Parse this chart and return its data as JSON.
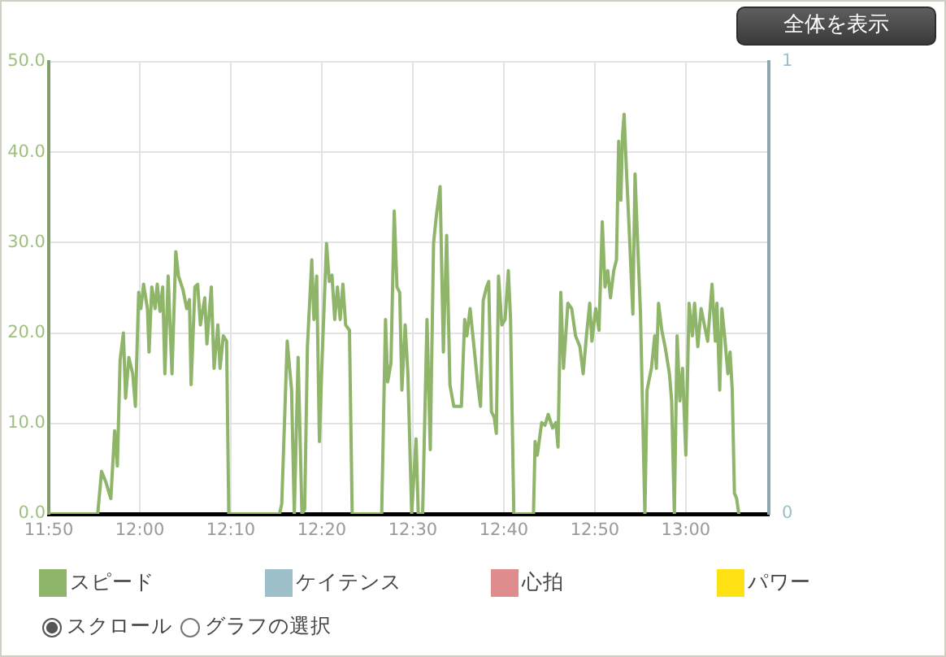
{
  "chart_data": {
    "type": "line",
    "xlim": [
      11.833333,
      13.152
    ],
    "xticks": [
      {
        "value": 11.833333,
        "label": "11:50"
      },
      {
        "value": 12,
        "label": "12:00"
      },
      {
        "value": 12.166667,
        "label": "12:10"
      },
      {
        "value": 12.333333,
        "label": "12:20"
      },
      {
        "value": 12.5,
        "label": "12:30"
      },
      {
        "value": 12.666667,
        "label": "12:40"
      },
      {
        "value": 12.833333,
        "label": "12:50"
      },
      {
        "value": 13,
        "label": "13:00"
      }
    ],
    "ylim": [
      0,
      50
    ],
    "yticks": [
      {
        "value": 0,
        "label": "0.0"
      },
      {
        "value": 10,
        "label": "10.0"
      },
      {
        "value": 20,
        "label": "20.0"
      },
      {
        "value": 30,
        "label": "30.0"
      },
      {
        "value": 40,
        "label": "40.0"
      },
      {
        "value": 50,
        "label": "50.0"
      }
    ],
    "y2lim": [
      0,
      1
    ],
    "y2ticks": [
      0,
      1
    ],
    "grid": true,
    "legend": "bottom",
    "marker": "none",
    "annotations": [
      "全体を表示",
      "スクロール",
      "グラフの選択"
    ],
    "series": [
      {
        "name": "スピード",
        "color": "#8fb56a",
        "x": [
          11.834,
          11.923,
          11.93,
          11.938,
          11.947,
          11.954,
          11.959,
          11.964,
          11.97,
          11.974,
          11.98,
          11.987,
          11.992,
          11.998,
          12.002,
          12.007,
          12.014,
          12.017,
          12.022,
          12.028,
          12.032,
          12.037,
          12.042,
          12.046,
          12.052,
          12.059,
          12.066,
          12.071,
          12.079,
          12.086,
          12.091,
          12.094,
          12.101,
          12.106,
          12.111,
          12.119,
          12.123,
          12.131,
          12.136,
          12.143,
          12.147,
          12.153,
          12.159,
          12.163,
          12.256,
          12.26,
          12.27,
          12.278,
          12.283,
          12.29,
          12.297,
          12.302,
          12.307,
          12.315,
          12.319,
          12.324,
          12.329,
          12.334,
          12.342,
          12.347,
          12.352,
          12.357,
          12.362,
          12.367,
          12.372,
          12.377,
          12.384,
          12.389,
          12.443,
          12.45,
          12.454,
          12.46,
          12.466,
          12.471,
          12.476,
          12.48,
          12.486,
          12.491,
          12.498,
          12.506,
          12.51,
          12.518,
          12.526,
          12.532,
          12.538,
          12.543,
          12.55,
          12.556,
          12.562,
          12.568,
          12.575,
          12.589,
          12.595,
          12.599,
          12.605,
          12.612,
          12.619,
          12.624,
          12.629,
          12.635,
          12.639,
          12.644,
          12.649,
          12.653,
          12.657,
          12.663,
          12.669,
          12.675,
          12.679,
          12.685,
          12.721,
          12.724,
          12.728,
          12.736,
          12.742,
          12.748,
          12.756,
          12.762,
          12.766,
          12.771,
          12.776,
          12.784,
          12.791,
          12.798,
          12.806,
          12.812,
          12.818,
          12.824,
          12.828,
          12.835,
          12.841,
          12.847,
          12.852,
          12.857,
          12.862,
          12.868,
          12.873,
          12.877,
          12.881,
          12.884,
          12.887,
          12.891,
          12.897,
          12.903,
          12.907,
          12.911,
          12.917,
          12.925,
          12.929,
          12.937,
          12.943,
          12.946,
          12.95,
          12.956,
          12.962,
          12.97,
          12.974,
          12.979,
          12.984,
          12.989,
          12.994,
          13.0,
          13.006,
          13.012,
          13.016,
          13.022,
          13.028,
          13.034,
          13.04,
          13.048,
          13.054,
          13.057,
          13.062,
          13.066,
          13.071,
          13.077,
          13.081,
          13.085,
          13.089,
          13.093,
          13.097
        ],
        "values": [
          0,
          0,
          4.7,
          3.5,
          1.7,
          9.2,
          5.3,
          17,
          20,
          12.8,
          17.3,
          15.5,
          11.9,
          24.5,
          22.7,
          25.4,
          22.7,
          17.9,
          25.1,
          22.7,
          25.4,
          22.4,
          25.1,
          15.5,
          26.3,
          15.5,
          29,
          26.3,
          24.8,
          22.7,
          23.7,
          14.3,
          25.1,
          25.4,
          20.9,
          23.9,
          18.8,
          25.1,
          16.1,
          20.9,
          16.1,
          19.7,
          19.1,
          0,
          0,
          1.1,
          19.1,
          13.7,
          0,
          17.3,
          0,
          0.5,
          18.5,
          28.1,
          21.5,
          26.3,
          8,
          17.3,
          29.9,
          25.7,
          26.4,
          21.5,
          25.1,
          21.5,
          25.4,
          20.9,
          20.3,
          0,
          0,
          21.5,
          14.6,
          16.7,
          33.5,
          25.1,
          24.5,
          13.7,
          20.9,
          15.5,
          0,
          8.3,
          0,
          0,
          21.5,
          7.1,
          29.9,
          32.9,
          36.2,
          17.9,
          30.8,
          14.3,
          11.9,
          11.9,
          21.5,
          19.7,
          22.7,
          18.5,
          14.3,
          11.9,
          23.6,
          25.1,
          25.7,
          11.3,
          10.7,
          8.9,
          26.3,
          20.9,
          21.5,
          26.9,
          21.5,
          0,
          0,
          8,
          6.5,
          10.1,
          9.8,
          11,
          9.5,
          10.1,
          7.4,
          24.5,
          16.1,
          23.3,
          22.7,
          19.7,
          18.5,
          15.5,
          19.7,
          23.3,
          19.1,
          22.7,
          20.3,
          32.3,
          25.1,
          26.9,
          23.9,
          26.9,
          28.1,
          41.2,
          34.7,
          41.8,
          44.2,
          38.3,
          30.5,
          22.1,
          37.6,
          31.1,
          22.1,
          0,
          13.7,
          16.1,
          19.7,
          16.1,
          23.3,
          20.3,
          18.5,
          15.5,
          12.5,
          0,
          19.7,
          12.5,
          16.1,
          6.5,
          23.3,
          19.7,
          23.3,
          18.5,
          22.7,
          20.9,
          19.1,
          25.4,
          19.1,
          23.3,
          13.7,
          22.7,
          19.7,
          15.5,
          17.9,
          13.7,
          2.3,
          1.7,
          0
        ]
      },
      {
        "name": "ケイテンス",
        "color": "#9dbfc9",
        "axis": "y2"
      },
      {
        "name": "心拍",
        "color": "#de8c8c"
      },
      {
        "name": "パワー",
        "color": "#ffe213"
      }
    ]
  }
}
